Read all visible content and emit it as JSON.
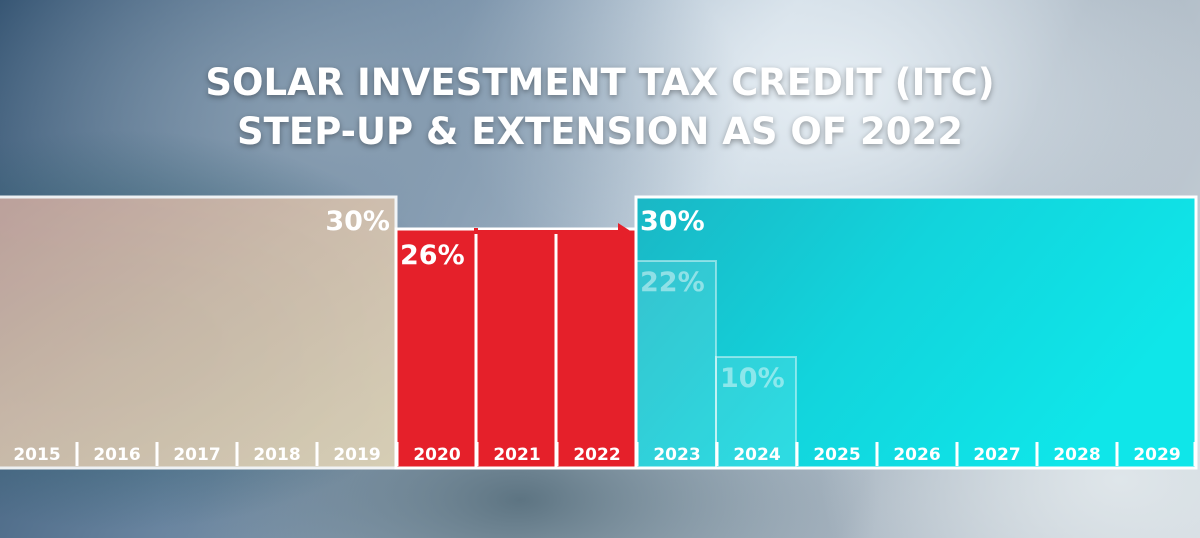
{
  "title_lines": [
    "SOLAR INVESTMENT TAX CREDIT (ITC)",
    "STEP-UP & EXTENSION AS OF 2022"
  ],
  "chart_data": {
    "type": "bar",
    "categories": [
      "2015",
      "2016",
      "2017",
      "2018",
      "2019",
      "2020",
      "2021",
      "2022",
      "2023",
      "2024",
      "2025",
      "2026",
      "2027",
      "2028",
      "2029"
    ],
    "series": [
      {
        "values": [
          30,
          30,
          30,
          30,
          30,
          26,
          26,
          26,
          30,
          30,
          30,
          30,
          30,
          30,
          30
        ]
      },
      {
        "values": [
          null,
          null,
          null,
          null,
          null,
          null,
          null,
          null,
          22,
          10,
          null,
          null,
          null,
          null,
          null
        ]
      }
    ],
    "ylim": [
      0,
      35
    ],
    "annotations": [
      {
        "text": "30%",
        "over": [
          "2015",
          "2019"
        ],
        "style": "beige"
      },
      {
        "text": "26%",
        "over": [
          "2020",
          "2022"
        ],
        "style": "red"
      },
      {
        "text": "30%",
        "over": [
          "2023",
          "2029"
        ],
        "style": "cyan"
      },
      {
        "text": "22%",
        "over": [
          "2023"
        ],
        "style": "faded"
      },
      {
        "text": "10%",
        "over": [
          "2024"
        ],
        "style": "faded"
      }
    ],
    "arrow": {
      "from": "2021",
      "to": "2023",
      "color": "#e5202a"
    },
    "colors": {
      "red": "#e5202a",
      "beige": "#d8c7b4",
      "cyan": "#11d8e0",
      "white": "#ffffff"
    }
  }
}
